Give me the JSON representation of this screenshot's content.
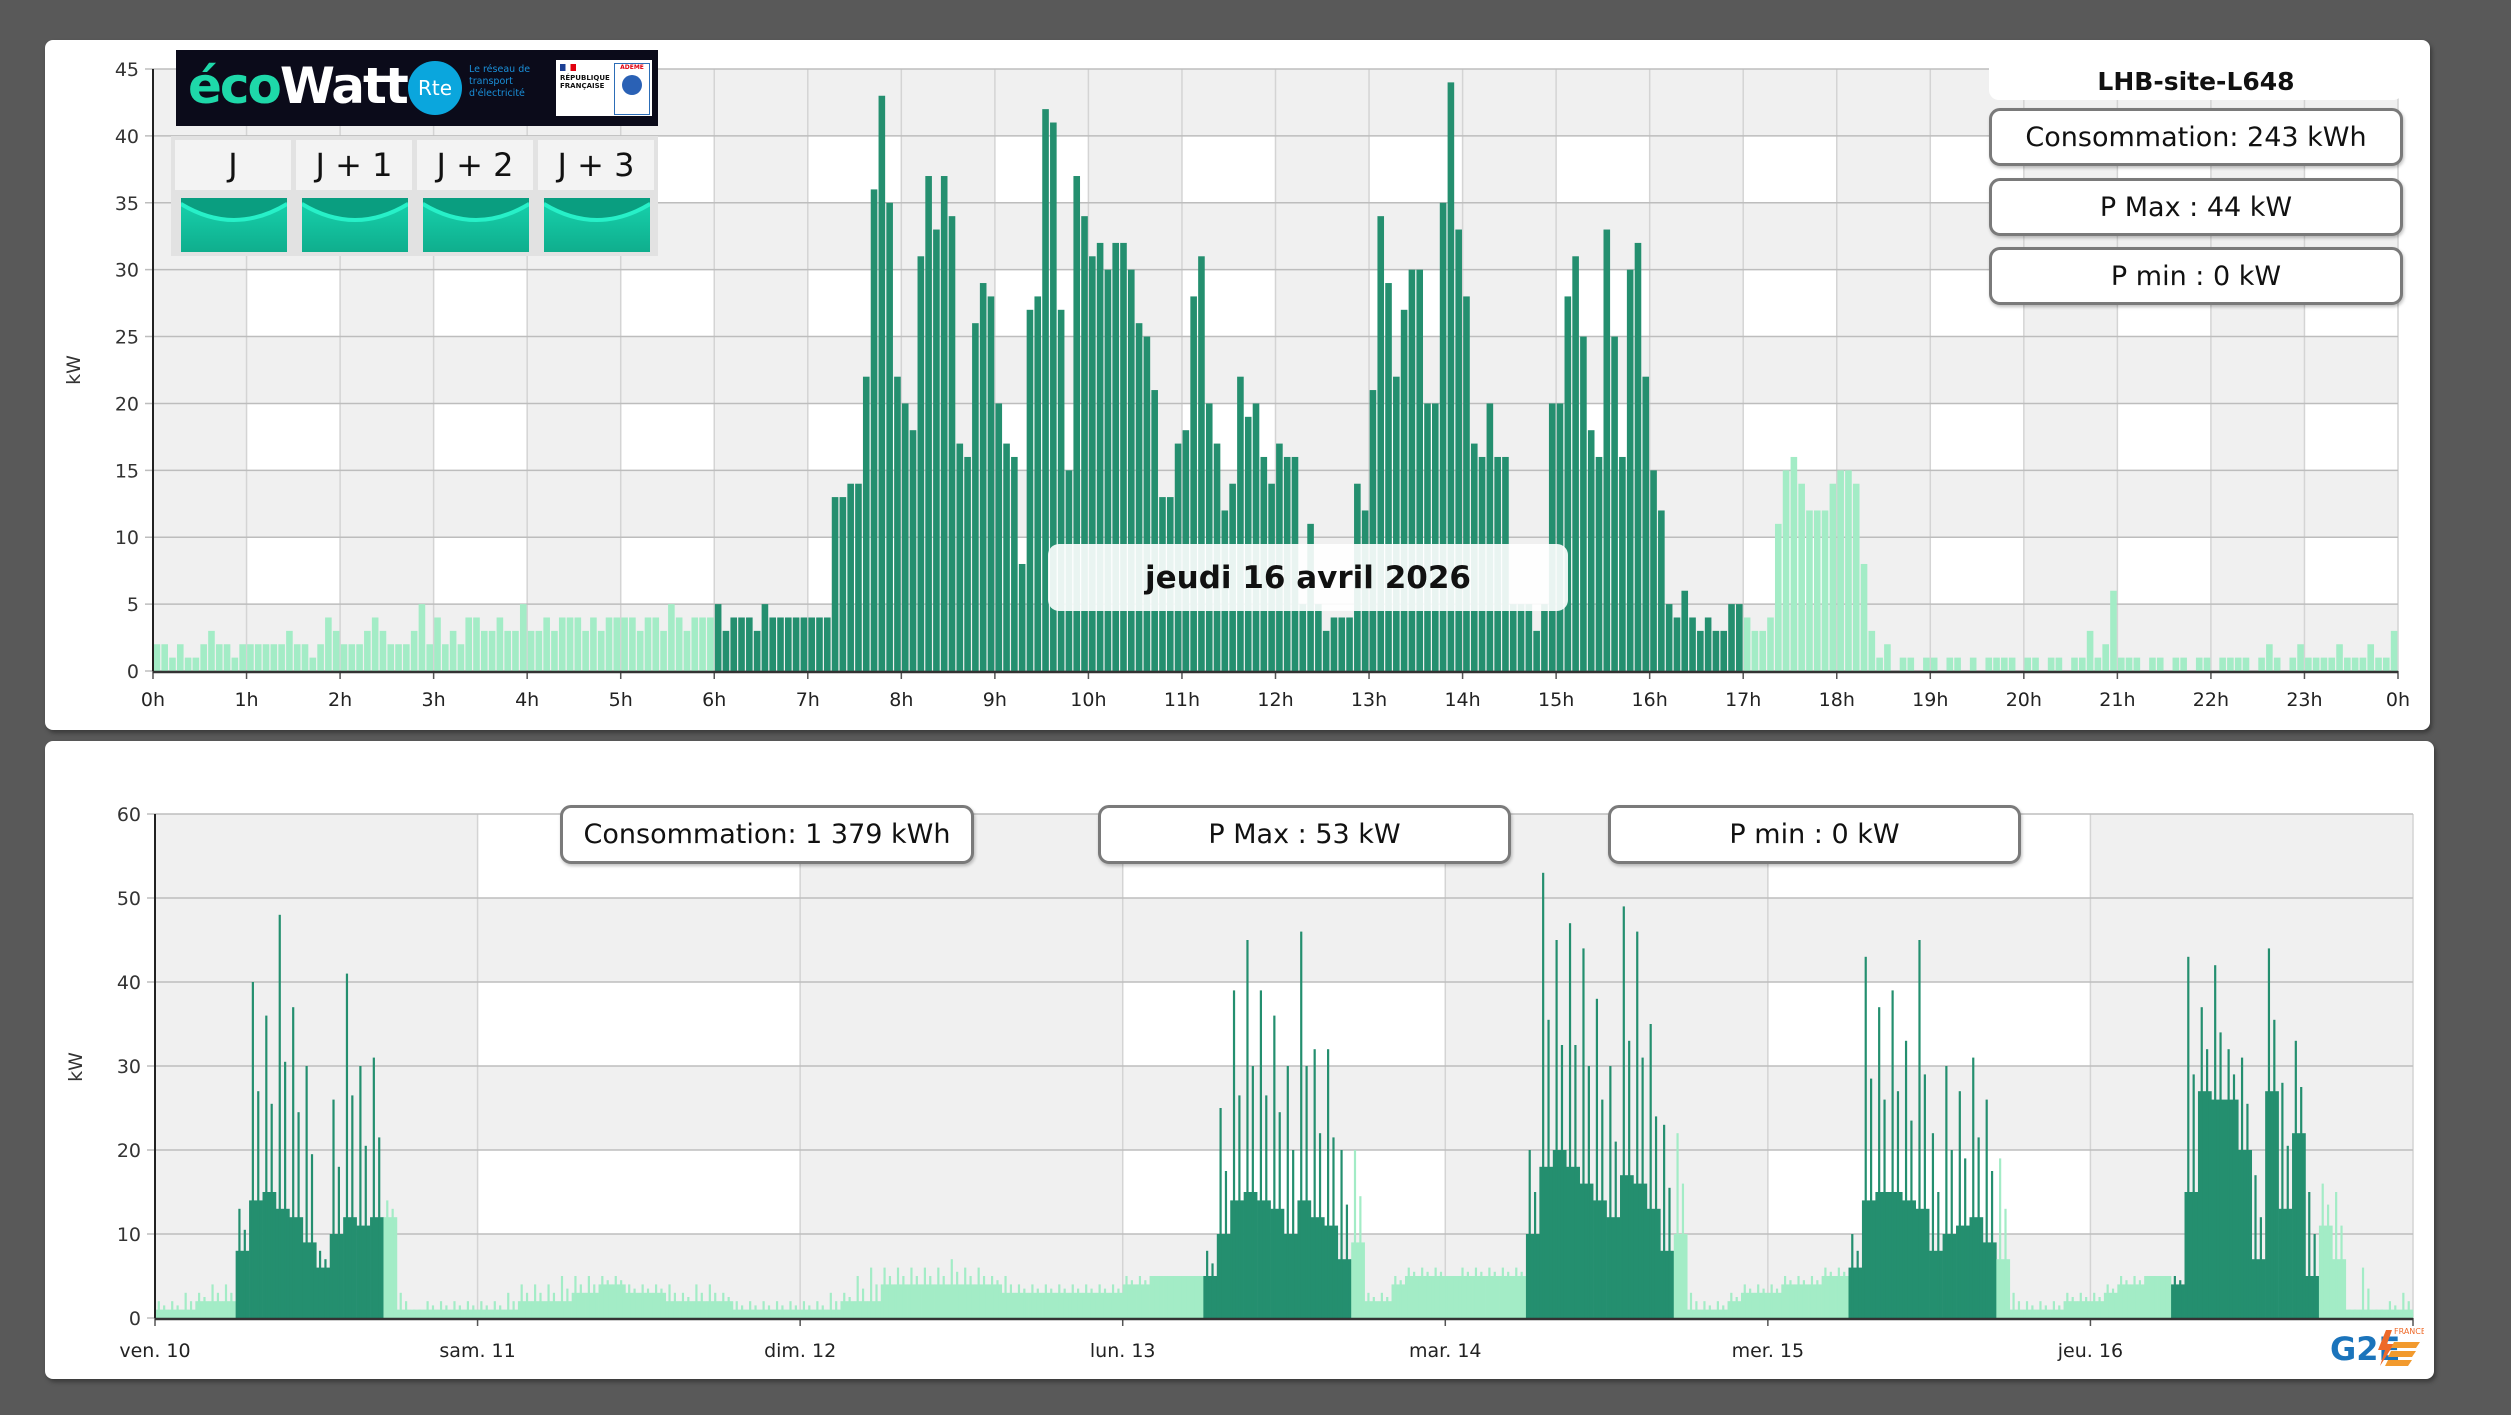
{
  "site": {
    "title": "LHB-site-L648",
    "day_stats": {
      "consumption": "Consommation: 243 kWh",
      "p_max": "P Max :  44 kW",
      "p_min": "P min : 0 kW"
    },
    "week_stats": {
      "consumption": "Consommation: 1 379 kWh",
      "p_max": "P Max :  53 kW",
      "p_min": "P min : 0 kW"
    },
    "tooltip_date": "jeudi 16 avril 2026"
  },
  "ecowatt": {
    "logo_eco": "éco",
    "logo_watt": "Watt",
    "rte_logo": "Rte",
    "rte_tagline": "Le réseau de transport d'électricité",
    "republique": "RÉPUBLIQUE FRANÇAISE",
    "ademe": "ADEME",
    "days": [
      {
        "label": "J",
        "signal": "vert"
      },
      {
        "label": "J + 1",
        "signal": "vert"
      },
      {
        "label": "J + 2",
        "signal": "vert"
      },
      {
        "label": "J + 3",
        "signal": "vert"
      }
    ],
    "signal_color": "#14c9a5"
  },
  "brand": {
    "logo_text": "G2E",
    "logo_sub": "FRANCE"
  },
  "colors": {
    "peak": "#248f6f",
    "offpeak": "#a3ecc6",
    "grid_band": "#f0f0f0"
  },
  "chart_data": [
    {
      "type": "bar",
      "title": "jeudi 16 avril 2026",
      "ylabel": "kW",
      "xlabel": "",
      "ylim": [
        0,
        45
      ],
      "y_ticks": [
        "0",
        "5",
        "10",
        "15",
        "20",
        "25",
        "30",
        "35",
        "40",
        "45"
      ],
      "x_ticks": [
        "0h",
        "1h",
        "2h",
        "3h",
        "4h",
        "5h",
        "6h",
        "7h",
        "8h",
        "9h",
        "10h",
        "11h",
        "12h",
        "13h",
        "14h",
        "15h",
        "16h",
        "17h",
        "18h",
        "19h",
        "20h",
        "21h",
        "22h",
        "23h",
        "0h"
      ],
      "interval_minutes": 5,
      "peak_hours": [
        6,
        17
      ],
      "values": [
        2,
        2,
        1,
        2,
        1,
        1,
        2,
        3,
        2,
        2,
        1,
        2,
        2,
        2,
        2,
        2,
        2,
        3,
        2,
        2,
        1,
        2,
        4,
        3,
        2,
        2,
        2,
        3,
        4,
        3,
        2,
        2,
        2,
        3,
        5,
        2,
        4,
        2,
        3,
        2,
        4,
        4,
        3,
        3,
        4,
        3,
        3,
        5,
        3,
        3,
        4,
        3,
        4,
        4,
        4,
        3,
        4,
        3,
        4,
        4,
        4,
        4,
        3,
        4,
        4,
        3,
        5,
        4,
        3,
        4,
        4,
        4,
        5,
        3,
        4,
        4,
        4,
        3,
        5,
        4,
        4,
        4,
        4,
        4,
        4,
        4,
        4,
        13,
        13,
        14,
        14,
        22,
        36,
        43,
        35,
        22,
        20,
        18,
        31,
        37,
        33,
        37,
        34,
        17,
        16,
        26,
        29,
        28,
        20,
        17,
        16,
        8,
        27,
        28,
        42,
        41,
        27,
        15,
        37,
        34,
        31,
        32,
        30,
        32,
        32,
        30,
        26,
        25,
        21,
        13,
        13,
        17,
        18,
        28,
        31,
        20,
        17,
        12,
        14,
        22,
        19,
        20,
        16,
        14,
        17,
        16,
        16,
        5,
        11,
        5,
        3,
        4,
        4,
        4,
        14,
        12,
        21,
        34,
        29,
        22,
        27,
        30,
        30,
        20,
        20,
        35,
        44,
        33,
        28,
        17,
        16,
        20,
        16,
        16,
        5,
        5,
        5,
        3,
        5,
        20,
        20,
        28,
        31,
        25,
        18,
        16,
        33,
        25,
        16,
        30,
        32,
        22,
        15,
        12,
        5,
        4,
        6,
        4,
        3,
        4,
        3,
        3,
        5,
        5,
        4,
        3,
        3,
        4,
        11,
        15,
        16,
        14,
        12,
        12,
        12,
        14,
        15,
        15,
        14,
        8,
        3,
        1,
        2,
        0,
        1,
        1,
        0,
        1,
        1,
        0,
        1,
        1,
        0,
        1,
        0,
        1,
        1,
        1,
        1,
        0,
        1,
        1,
        0,
        1,
        1,
        0,
        1,
        1,
        3,
        1,
        2,
        6,
        1,
        1,
        1,
        0,
        1,
        1,
        0,
        1,
        1,
        0,
        1,
        1,
        0,
        1,
        1,
        1,
        1,
        0,
        1,
        2,
        1,
        0,
        1,
        2,
        1,
        1,
        1,
        1,
        2,
        1,
        1,
        1,
        2,
        1,
        1,
        3
      ]
    },
    {
      "type": "bar",
      "title": "",
      "ylabel": "kW",
      "xlabel": "",
      "ylim": [
        0,
        60
      ],
      "y_ticks": [
        "0",
        "10",
        "20",
        "30",
        "40",
        "50",
        "60"
      ],
      "interval_minutes": 60,
      "days": [
        {
          "label": "ven. 10",
          "peak_hours": [
            6,
            17
          ],
          "avg": [
            1,
            1,
            1,
            2,
            2,
            2,
            8,
            14,
            15,
            13,
            12,
            9,
            6,
            10,
            12,
            11,
            12,
            12,
            1,
            1,
            1,
            1,
            1,
            1
          ],
          "max": [
            2,
            2,
            3,
            3,
            4,
            4,
            13,
            40,
            36,
            48,
            37,
            30,
            8,
            26,
            41,
            30,
            31,
            14,
            3,
            1,
            2,
            2,
            2,
            2
          ]
        },
        {
          "label": "sam. 11",
          "peak_hours": null,
          "avg": [
            1,
            1,
            1,
            2,
            2,
            2,
            2,
            3,
            3,
            4,
            4,
            3,
            3,
            3,
            2,
            2,
            2,
            2,
            2,
            1,
            1,
            1,
            1,
            1
          ],
          "max": [
            2,
            2,
            3,
            4,
            4,
            4,
            5,
            5,
            5,
            5,
            5,
            4,
            4,
            4,
            4,
            3,
            4,
            4,
            3,
            2,
            2,
            2,
            2,
            2
          ]
        },
        {
          "label": "dim. 12",
          "peak_hours": null,
          "avg": [
            1,
            1,
            1,
            2,
            2,
            2,
            4,
            4,
            4,
            4,
            4,
            4,
            4,
            4,
            4,
            3,
            3,
            3,
            3,
            3,
            3,
            3,
            3,
            3
          ],
          "max": [
            2,
            2,
            3,
            3,
            5,
            6,
            6,
            6,
            6,
            6,
            6,
            7,
            6,
            6,
            5,
            5,
            4,
            4,
            4,
            4,
            4,
            4,
            4,
            4
          ]
        },
        {
          "label": "lun. 13",
          "peak_hours": [
            6,
            17
          ],
          "avg": [
            4,
            4,
            5,
            5,
            5,
            5,
            5,
            10,
            14,
            15,
            14,
            13,
            10,
            14,
            12,
            11,
            7,
            9,
            2,
            2,
            4,
            5,
            5,
            5
          ],
          "max": [
            5,
            5,
            5,
            5,
            5,
            5,
            8,
            25,
            39,
            45,
            39,
            36,
            30,
            46,
            32,
            32,
            20,
            20,
            3,
            3,
            5,
            6,
            6,
            6
          ]
        },
        {
          "label": "mar. 14",
          "peak_hours": [
            6,
            17
          ],
          "avg": [
            5,
            5,
            5,
            5,
            5,
            5,
            10,
            18,
            20,
            18,
            16,
            14,
            12,
            17,
            16,
            13,
            8,
            10,
            1,
            1,
            1,
            2,
            3,
            3
          ],
          "max": [
            5,
            6,
            6,
            6,
            6,
            6,
            20,
            53,
            45,
            47,
            44,
            38,
            30,
            49,
            46,
            35,
            23,
            22,
            3,
            2,
            2,
            3,
            4,
            4
          ]
        },
        {
          "label": "mer. 15",
          "peak_hours": [
            6,
            17
          ],
          "avg": [
            3,
            4,
            4,
            4,
            5,
            5,
            6,
            14,
            15,
            15,
            14,
            13,
            8,
            10,
            11,
            12,
            9,
            7,
            1,
            1,
            1,
            1,
            2,
            2
          ],
          "max": [
            4,
            5,
            5,
            5,
            6,
            6,
            10,
            43,
            37,
            39,
            33,
            45,
            22,
            30,
            27,
            31,
            26,
            19,
            3,
            2,
            2,
            2,
            3,
            3
          ]
        },
        {
          "label": "jeu. 16",
          "peak_hours": [
            6,
            17
          ],
          "avg": [
            2,
            3,
            4,
            4,
            5,
            5,
            4,
            15,
            27,
            26,
            26,
            20,
            7,
            27,
            13,
            22,
            5,
            11,
            7,
            1,
            1,
            1,
            1,
            1
          ],
          "max": [
            3,
            4,
            5,
            5,
            5,
            5,
            5,
            43,
            37,
            42,
            32,
            31,
            17,
            44,
            28,
            33,
            15,
            16,
            15,
            1,
            6,
            1,
            2,
            3
          ]
        }
      ]
    }
  ]
}
